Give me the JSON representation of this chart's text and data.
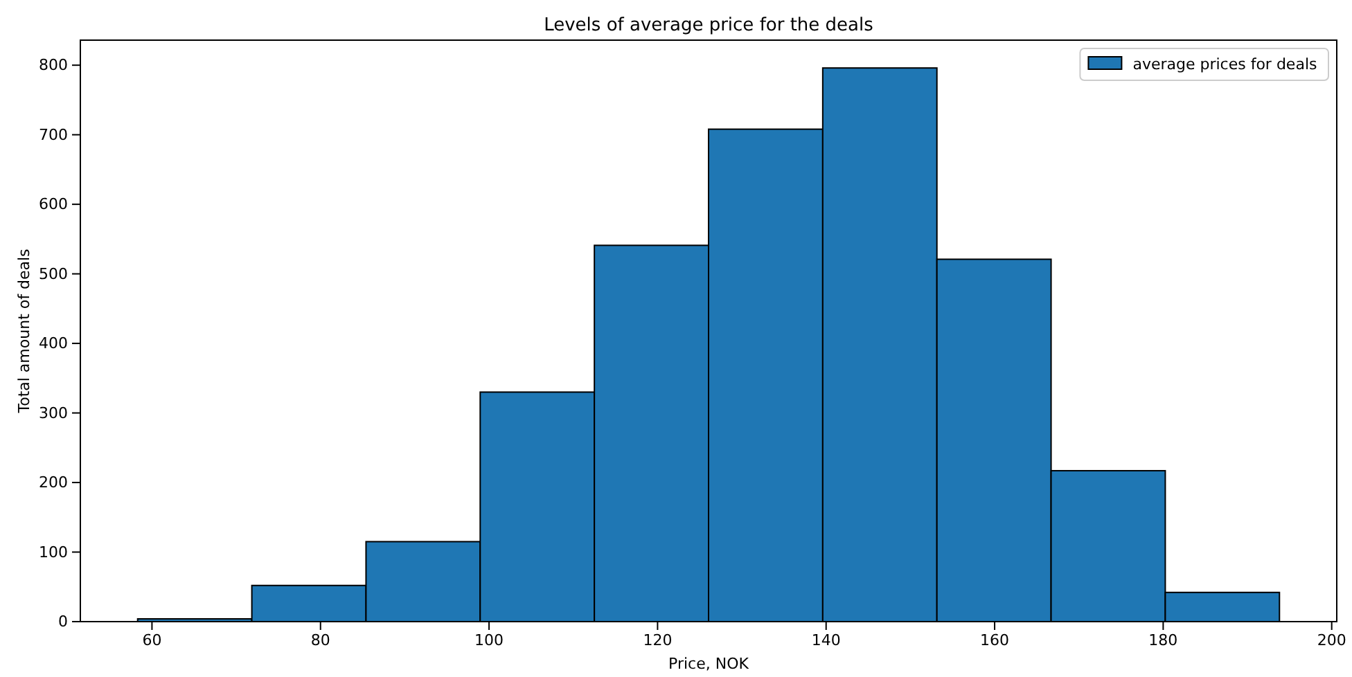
{
  "chart_data": {
    "type": "histogram",
    "title": "Levels of average price for the deals",
    "xlabel": "Price, NOK",
    "ylabel": "Total amount of deals",
    "bins": [
      58.3,
      71.85,
      85.4,
      98.95,
      112.5,
      126.05,
      139.6,
      153.15,
      166.7,
      180.25,
      193.8
    ],
    "series": [
      {
        "name": "average prices for deals",
        "color": "#1f77b4",
        "values": [
          4,
          52,
          115,
          330,
          541,
          708,
          796,
          521,
          217,
          42
        ]
      }
    ],
    "xlim": [
      51.5,
      200.6
    ],
    "xticks": [
      60,
      80,
      100,
      120,
      140,
      160,
      180,
      200
    ],
    "ylim": [
      0,
      836
    ],
    "yticks": [
      0,
      100,
      200,
      300,
      400,
      500,
      600,
      700,
      800
    ],
    "legend": "top right",
    "grid": false
  }
}
